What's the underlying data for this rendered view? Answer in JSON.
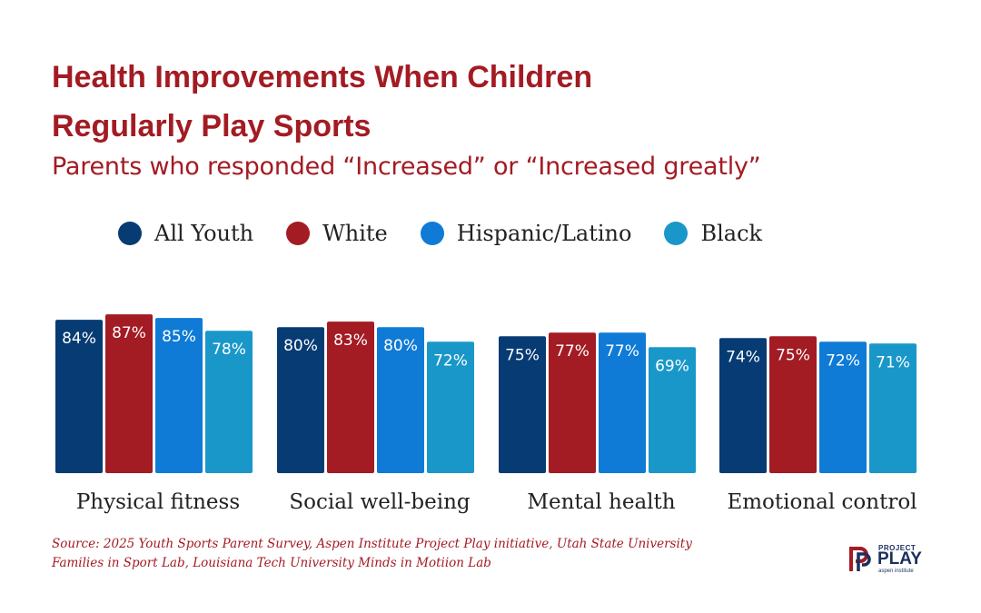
{
  "header": {
    "title_line1": "Health Improvements When Children",
    "title_line2": "Regularly Play Sports",
    "subtitle": "Parents who responded “Increased” or “Increased greatly”"
  },
  "legend": [
    {
      "label": "All Youth",
      "color": "#073b73"
    },
    {
      "label": "White",
      "color": "#a31b23"
    },
    {
      "label": "Hispanic/Latino",
      "color": "#0f7bd6"
    },
    {
      "label": "Black",
      "color": "#1997c9"
    }
  ],
  "chart_data": {
    "type": "bar",
    "title": "Health Improvements When Children Regularly Play Sports",
    "subtitle": "Parents who responded “Increased” or “Increased greatly”",
    "categories": [
      "Physical fitness",
      "Social well-being",
      "Mental health",
      "Emotional control"
    ],
    "series": [
      {
        "name": "All Youth",
        "color": "#073b73",
        "values": [
          84,
          80,
          75,
          74
        ],
        "labels": [
          "84%",
          "80%",
          "75%",
          "74%"
        ]
      },
      {
        "name": "White",
        "color": "#a31b23",
        "values": [
          87,
          83,
          77,
          75
        ],
        "labels": [
          "87%",
          "83%",
          "77%",
          "75%"
        ]
      },
      {
        "name": "Hispanic/Latino",
        "color": "#0f7bd6",
        "values": [
          85,
          80,
          77,
          72
        ],
        "labels": [
          "85%",
          "80%",
          "77%",
          "72%"
        ]
      },
      {
        "name": "Black",
        "color": "#1997c9",
        "values": [
          78,
          72,
          69,
          71
        ],
        "labels": [
          "78%",
          "72%",
          "69%",
          "71%"
        ]
      }
    ],
    "xlabel": "",
    "ylabel": "",
    "grid": false,
    "legend_position": "top"
  },
  "source": {
    "line1": "Source: 2025 Youth Sports Parent Survey, Aspen Institute Project Play initiative, Utah State University",
    "line2": "Families in Sport Lab, Louisiana Tech University Minds in Motiion Lab"
  },
  "logo": {
    "small": "PROJECT",
    "big": "PLAY",
    "tiny": "aspen institute"
  }
}
